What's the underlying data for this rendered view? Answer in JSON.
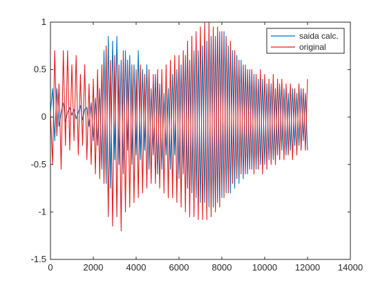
{
  "chart_data": {
    "type": "line",
    "title": "",
    "xlabel": "",
    "ylabel": "",
    "xlim": [
      0,
      14000
    ],
    "ylim": [
      -1.5,
      1
    ],
    "xticks": [
      0,
      2000,
      4000,
      6000,
      8000,
      10000,
      12000,
      14000
    ],
    "yticks": [
      -1.5,
      -1,
      -0.5,
      0,
      0.5,
      1
    ],
    "xtick_labels": [
      "0",
      "2000",
      "4000",
      "6000",
      "8000",
      "10000",
      "12000",
      "14000"
    ],
    "ytick_labels": [
      "-1.5",
      "-1",
      "-0.5",
      "0",
      "0.5",
      "1"
    ],
    "grid": false,
    "legend": {
      "placement": "top-right",
      "entries": [
        "saida calc.",
        "original"
      ]
    },
    "series": [
      {
        "name": "saida calc.",
        "color": "#0072BD",
        "x": [
          0,
          100,
          200,
          300,
          400,
          500,
          600,
          700,
          800,
          900,
          1000,
          1100,
          1200,
          1300,
          1400,
          1500,
          1600,
          1700,
          1800,
          1900,
          2000,
          2100,
          2200,
          2300,
          2400,
          2500,
          2600,
          2700,
          2800,
          2900,
          3000,
          3100,
          3200,
          3300,
          3400,
          3500,
          3600,
          3700,
          3800,
          3900,
          4000,
          4100,
          4200,
          4300,
          4400,
          4500,
          4600,
          4700,
          4800,
          4900,
          5000,
          5100,
          5200,
          5300,
          5400,
          5500,
          5600,
          5700,
          5800,
          5900,
          6000,
          6100,
          6200,
          6300,
          6400,
          6500,
          6600,
          6700,
          6800,
          6900,
          7000,
          7100,
          7200,
          7300,
          7400,
          7500,
          7600,
          7700,
          7800,
          7900,
          8000,
          8100,
          8200,
          8300,
          8400,
          8500,
          8600,
          8700,
          8800,
          8900,
          9000,
          9100,
          9200,
          9300,
          9400,
          9500,
          9600,
          9700,
          9800,
          9900,
          10000,
          10100,
          10200,
          10300,
          10400,
          10500,
          10600,
          10700,
          10800,
          10900,
          11000,
          11100,
          11200,
          11300,
          11400,
          11500,
          11600,
          11700,
          11800,
          11900,
          12000
        ],
        "values": [
          0.05,
          0.3,
          -0.25,
          0.3,
          -0.1,
          0.05,
          0.15,
          -0.05,
          0.05,
          0.1,
          0.02,
          0.08,
          -0.02,
          0.05,
          0.12,
          -0.03,
          0.08,
          0.1,
          -0.1,
          0.15,
          -0.25,
          0.2,
          -0.3,
          0.3,
          -0.55,
          0.7,
          -0.7,
          0.85,
          -0.75,
          0.8,
          -0.45,
          0.85,
          -0.5,
          0.6,
          -0.6,
          0.7,
          -0.35,
          0.65,
          -0.5,
          0.55,
          -0.4,
          0.7,
          -0.45,
          0.5,
          -0.35,
          0.55,
          -0.55,
          0.3,
          -0.4,
          0.45,
          -0.6,
          0.35,
          -0.55,
          0.25,
          -0.4,
          0.3,
          -0.55,
          0.45,
          -0.4,
          0.5,
          -0.65,
          0.55,
          -0.6,
          0.65,
          -0.75,
          0.6,
          -0.8,
          0.7,
          -0.85,
          0.7,
          -0.9,
          0.75,
          -0.9,
          0.8,
          -0.95,
          0.85,
          -0.95,
          0.85,
          -0.9,
          0.9,
          -0.85,
          0.9,
          -0.8,
          0.75,
          -0.8,
          0.7,
          -0.75,
          0.65,
          -0.7,
          0.6,
          -0.65,
          0.55,
          -0.6,
          0.5,
          -0.55,
          0.45,
          -0.55,
          0.4,
          -0.5,
          0.4,
          -0.5,
          0.35,
          -0.45,
          0.35,
          -0.45,
          0.3,
          -0.4,
          0.35,
          -0.35,
          0.3,
          -0.4,
          0.25,
          -0.35,
          0.3,
          -0.3,
          0.25,
          -0.3,
          0.3,
          -0.25,
          0.25,
          -0.35
        ]
      },
      {
        "name": "original",
        "color": "#E41A1C",
        "x": [
          0,
          100,
          200,
          300,
          400,
          500,
          600,
          700,
          800,
          900,
          1000,
          1100,
          1200,
          1300,
          1400,
          1500,
          1600,
          1700,
          1800,
          1900,
          2000,
          2100,
          2200,
          2300,
          2400,
          2500,
          2600,
          2700,
          2800,
          2900,
          3000,
          3100,
          3200,
          3300,
          3400,
          3500,
          3600,
          3700,
          3800,
          3900,
          4000,
          4100,
          4200,
          4300,
          4400,
          4500,
          4600,
          4700,
          4800,
          4900,
          5000,
          5100,
          5200,
          5300,
          5400,
          5500,
          5600,
          5700,
          5800,
          5900,
          6000,
          6100,
          6200,
          6300,
          6400,
          6500,
          6600,
          6700,
          6800,
          6900,
          7000,
          7100,
          7200,
          7300,
          7400,
          7500,
          7600,
          7700,
          7800,
          7900,
          8000,
          8100,
          8200,
          8300,
          8400,
          8500,
          8600,
          8700,
          8800,
          8900,
          9000,
          9100,
          9200,
          9300,
          9400,
          9500,
          9600,
          9700,
          9800,
          9900,
          10000,
          10100,
          10200,
          10300,
          10400,
          10500,
          10600,
          10700,
          10800,
          10900,
          11000,
          11100,
          11200,
          11300,
          11400,
          11500,
          11600,
          11700,
          11800,
          11900,
          12000
        ],
        "values": [
          0.05,
          -0.5,
          0.7,
          -0.2,
          0.35,
          -0.55,
          0.7,
          -0.3,
          0.7,
          -0.35,
          0.55,
          -0.25,
          0.65,
          -0.4,
          0.45,
          -0.3,
          0.55,
          -0.45,
          0.35,
          -0.5,
          0.4,
          -0.6,
          0.5,
          -0.65,
          0.55,
          -0.7,
          0.75,
          -1.05,
          0.6,
          -1.15,
          0.65,
          -1.05,
          0.55,
          -1.2,
          0.7,
          -1.0,
          0.6,
          -0.95,
          0.55,
          -0.9,
          0.5,
          -0.85,
          0.55,
          -0.8,
          0.45,
          -0.75,
          0.5,
          -0.7,
          0.45,
          -0.7,
          0.5,
          -0.75,
          0.5,
          -0.8,
          0.55,
          -0.85,
          0.6,
          -0.85,
          0.65,
          -0.9,
          0.65,
          -0.95,
          0.7,
          -1.0,
          0.8,
          -1.05,
          0.85,
          -1.05,
          0.9,
          -1.08,
          0.95,
          -1.08,
          1.0,
          -1.08,
          1.0,
          -1.05,
          0.95,
          -1.0,
          0.95,
          -0.95,
          0.9,
          -0.85,
          0.85,
          -0.8,
          0.8,
          -0.7,
          0.7,
          -0.65,
          0.6,
          -0.6,
          0.55,
          -0.6,
          0.5,
          -0.55,
          0.5,
          -0.6,
          0.45,
          -0.55,
          0.5,
          -0.6,
          0.45,
          -0.55,
          0.4,
          -0.5,
          0.45,
          -0.5,
          0.4,
          -0.45,
          0.4,
          -0.45,
          0.35,
          -0.4,
          0.35,
          -0.45,
          0.3,
          -0.4,
          0.35,
          -0.35,
          0.3,
          -0.35,
          0.4
        ]
      }
    ]
  }
}
